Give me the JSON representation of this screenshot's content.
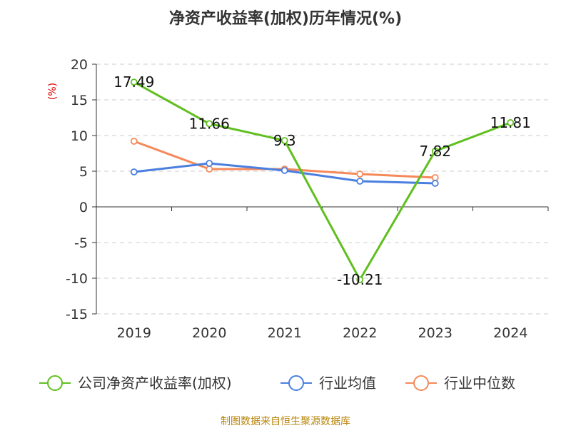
{
  "chart_data": {
    "type": "line",
    "title": "净资产收益率(加权)历年情况(%)",
    "ylabel": "(%)",
    "xlabel": "",
    "categories": [
      "2019",
      "2020",
      "2021",
      "2022",
      "2023",
      "2024"
    ],
    "ylim": [
      -15,
      20
    ],
    "yticks": [
      20,
      15,
      10,
      5,
      0,
      -5,
      -10,
      -15
    ],
    "grid": true,
    "legend_position": "bottom",
    "series": [
      {
        "name": "公司净资产收益率(加权)",
        "color": "#5fbf1f",
        "values": [
          17.49,
          11.66,
          9.3,
          -10.21,
          7.82,
          11.81
        ],
        "labels": [
          "17.49",
          "11.66",
          "9.3",
          "-10.21",
          "7.82",
          "11.81"
        ]
      },
      {
        "name": "行业均值",
        "color": "#4a7fe0",
        "values": [
          4.9,
          6.1,
          5.1,
          3.6,
          3.3,
          null
        ]
      },
      {
        "name": "行业中位数",
        "color": "#f5895a",
        "values": [
          9.2,
          5.3,
          5.3,
          4.6,
          4.1,
          null
        ]
      }
    ]
  },
  "source": "制图数据来自恒生聚源数据库"
}
